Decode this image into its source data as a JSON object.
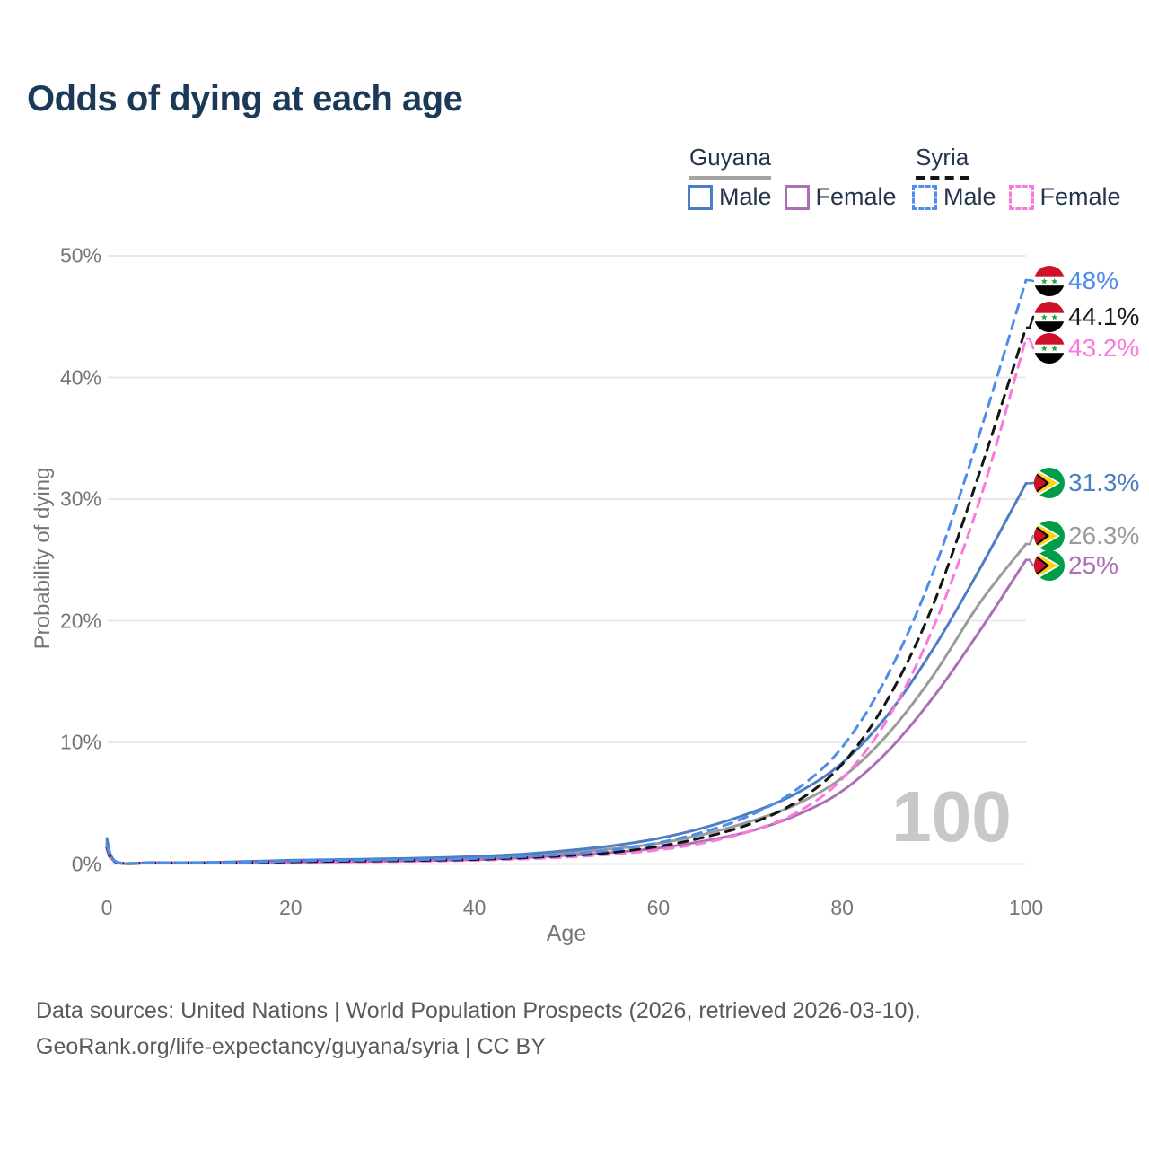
{
  "title": "Odds of dying at each age",
  "legend": {
    "groups": [
      {
        "label": "Guyana",
        "line_style": "solid",
        "underline_color": "#a3a3a3",
        "items": [
          {
            "label": "Male",
            "color": "#4d7dc4"
          },
          {
            "label": "Female",
            "color": "#aa6fb4"
          }
        ]
      },
      {
        "label": "Syria",
        "line_style": "dashed",
        "underline_color": "#141414",
        "items": [
          {
            "label": "Male",
            "color": "#4f8ceb"
          },
          {
            "label": "Female",
            "color": "#fb79dd"
          }
        ]
      }
    ]
  },
  "axes": {
    "y": {
      "title": "Probability of dying",
      "ticks": [
        "50%",
        "40%",
        "30%",
        "20%",
        "10%",
        "0%"
      ],
      "tick_values": [
        50,
        40,
        30,
        20,
        10,
        0
      ]
    },
    "x": {
      "title": "Age",
      "ticks": [
        "0",
        "20",
        "40",
        "60",
        "80",
        "100"
      ],
      "tick_values": [
        0,
        20,
        40,
        60,
        80,
        100
      ]
    }
  },
  "watermark": "100",
  "end_labels": [
    {
      "series": "Syria Male",
      "flag": "syria-flag-icon",
      "text": "48%",
      "color": "#4f8ceb",
      "value": 48
    },
    {
      "series": "Syria Both sexes",
      "flag": "syria-flag-icon",
      "text": "44.1%",
      "color": "#1a1a1a",
      "value": 44.1
    },
    {
      "series": "Syria Female",
      "flag": "syria-flag-icon",
      "text": "43.2%",
      "color": "#fb79dd",
      "value": 43.2
    },
    {
      "series": "Guyana Male",
      "flag": "guyana-flag-icon",
      "text": "31.3%",
      "color": "#4d7dc4",
      "value": 31.3
    },
    {
      "series": "Guyana Both sexes",
      "flag": "guyana-flag-icon",
      "text": "26.3%",
      "color": "#9b9b9b",
      "value": 26.3
    },
    {
      "series": "Guyana Female",
      "flag": "guyana-flag-icon",
      "text": "25%",
      "color": "#aa6fb4",
      "value": 25
    }
  ],
  "footer": {
    "line1": "Data sources: United Nations | World Population Prospects (2026, retrieved 2026-03-10).",
    "line2": "GeoRank.org/life-expectancy/guyana/syria | CC BY"
  },
  "colors": {
    "title": "#1c3a57",
    "axis_text": "#767676",
    "gridline": "#e9e9e9",
    "watermark": "#c8c8c8",
    "footer_text": "#5a5a5a"
  },
  "chart_data": {
    "type": "line",
    "title": "Odds of dying at each age",
    "xlabel": "Age",
    "ylabel": "Probability of dying",
    "xlim": [
      0,
      100
    ],
    "ylim": [
      0,
      50
    ],
    "y_unit": "%",
    "grid": "horizontal",
    "legend_position": "top-right",
    "x": [
      0,
      1,
      5,
      10,
      15,
      20,
      25,
      30,
      35,
      40,
      45,
      50,
      55,
      60,
      65,
      70,
      75,
      80,
      85,
      90,
      95,
      100
    ],
    "series": [
      {
        "name": "Guyana Male",
        "style": "solid",
        "color": "#4d7dc4",
        "end_label": "31.3%",
        "values": [
          2.1,
          0.2,
          0.12,
          0.12,
          0.2,
          0.3,
          0.36,
          0.42,
          0.5,
          0.62,
          0.8,
          1.1,
          1.5,
          2.1,
          3.0,
          4.2,
          5.8,
          8.3,
          12.3,
          17.8,
          24.3,
          31.3
        ]
      },
      {
        "name": "Guyana Female",
        "style": "solid",
        "color": "#aa6fb4",
        "end_label": "25%",
        "values": [
          1.7,
          0.15,
          0.1,
          0.1,
          0.12,
          0.15,
          0.18,
          0.22,
          0.28,
          0.36,
          0.5,
          0.7,
          0.95,
          1.3,
          1.9,
          2.7,
          4.0,
          6.0,
          9.3,
          13.8,
          19.2,
          25.0
        ]
      },
      {
        "name": "Guyana Both sexes",
        "style": "solid",
        "color": "#9b9b9b",
        "end_label": "26.3%",
        "values": [
          1.9,
          0.18,
          0.11,
          0.11,
          0.16,
          0.22,
          0.27,
          0.32,
          0.4,
          0.5,
          0.65,
          0.9,
          1.25,
          1.7,
          2.45,
          3.5,
          4.9,
          7.1,
          10.7,
          15.6,
          21.5,
          26.3
        ]
      },
      {
        "name": "Syria Male",
        "style": "dashed",
        "color": "#4f8ceb",
        "end_label": "48%",
        "values": [
          1.5,
          0.18,
          0.1,
          0.1,
          0.15,
          0.25,
          0.3,
          0.33,
          0.38,
          0.45,
          0.6,
          0.8,
          1.15,
          1.75,
          2.65,
          4.0,
          6.1,
          9.6,
          15.6,
          24.2,
          35.5,
          48.0
        ]
      },
      {
        "name": "Syria Both sexes",
        "style": "dashed",
        "color": "#141414",
        "end_label": "44.1%",
        "values": [
          1.35,
          0.15,
          0.09,
          0.09,
          0.12,
          0.18,
          0.22,
          0.26,
          0.3,
          0.37,
          0.5,
          0.68,
          0.95,
          1.45,
          2.2,
          3.3,
          5.1,
          8.2,
          13.6,
          21.5,
          32.3,
          44.1
        ]
      },
      {
        "name": "Syria Female",
        "style": "dashed",
        "color": "#fb79dd",
        "end_label": "43.2%",
        "values": [
          1.2,
          0.13,
          0.08,
          0.08,
          0.1,
          0.13,
          0.16,
          0.19,
          0.23,
          0.3,
          0.4,
          0.55,
          0.8,
          1.15,
          1.75,
          2.7,
          4.2,
          7.0,
          12.0,
          19.6,
          30.0,
          43.2
        ]
      }
    ]
  }
}
